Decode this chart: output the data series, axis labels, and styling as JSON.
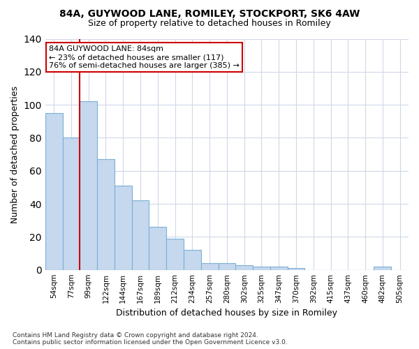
{
  "title1": "84A, GUYWOOD LANE, ROMILEY, STOCKPORT, SK6 4AW",
  "title2": "Size of property relative to detached houses in Romiley",
  "xlabel": "Distribution of detached houses by size in Romiley",
  "ylabel": "Number of detached properties",
  "footnote": "Contains HM Land Registry data © Crown copyright and database right 2024.\nContains public sector information licensed under the Open Government Licence v3.0.",
  "categories": [
    "54sqm",
    "77sqm",
    "99sqm",
    "122sqm",
    "144sqm",
    "167sqm",
    "189sqm",
    "212sqm",
    "234sqm",
    "257sqm",
    "280sqm",
    "302sqm",
    "325sqm",
    "347sqm",
    "370sqm",
    "392sqm",
    "415sqm",
    "437sqm",
    "460sqm",
    "482sqm",
    "505sqm"
  ],
  "values": [
    95,
    80,
    102,
    67,
    51,
    42,
    26,
    19,
    12,
    4,
    4,
    3,
    2,
    2,
    1,
    0,
    0,
    0,
    0,
    2,
    0
  ],
  "bar_color": "#c5d8ee",
  "bar_edge_color": "#7bafd4",
  "bg_color": "#ffffff",
  "fig_bg_color": "#ffffff",
  "grid_color": "#d0d8e8",
  "vline_color": "#cc0000",
  "annotation_line1": "84A GUYWOOD LANE: 84sqm",
  "annotation_line2": "← 23% of detached houses are smaller (117)",
  "annotation_line3": "76% of semi-detached houses are larger (385) →",
  "annotation_box_color": "#ffffff",
  "annotation_box_edge": "#cc0000",
  "ylim": [
    0,
    140
  ],
  "yticks": [
    0,
    20,
    40,
    60,
    80,
    100,
    120,
    140
  ]
}
